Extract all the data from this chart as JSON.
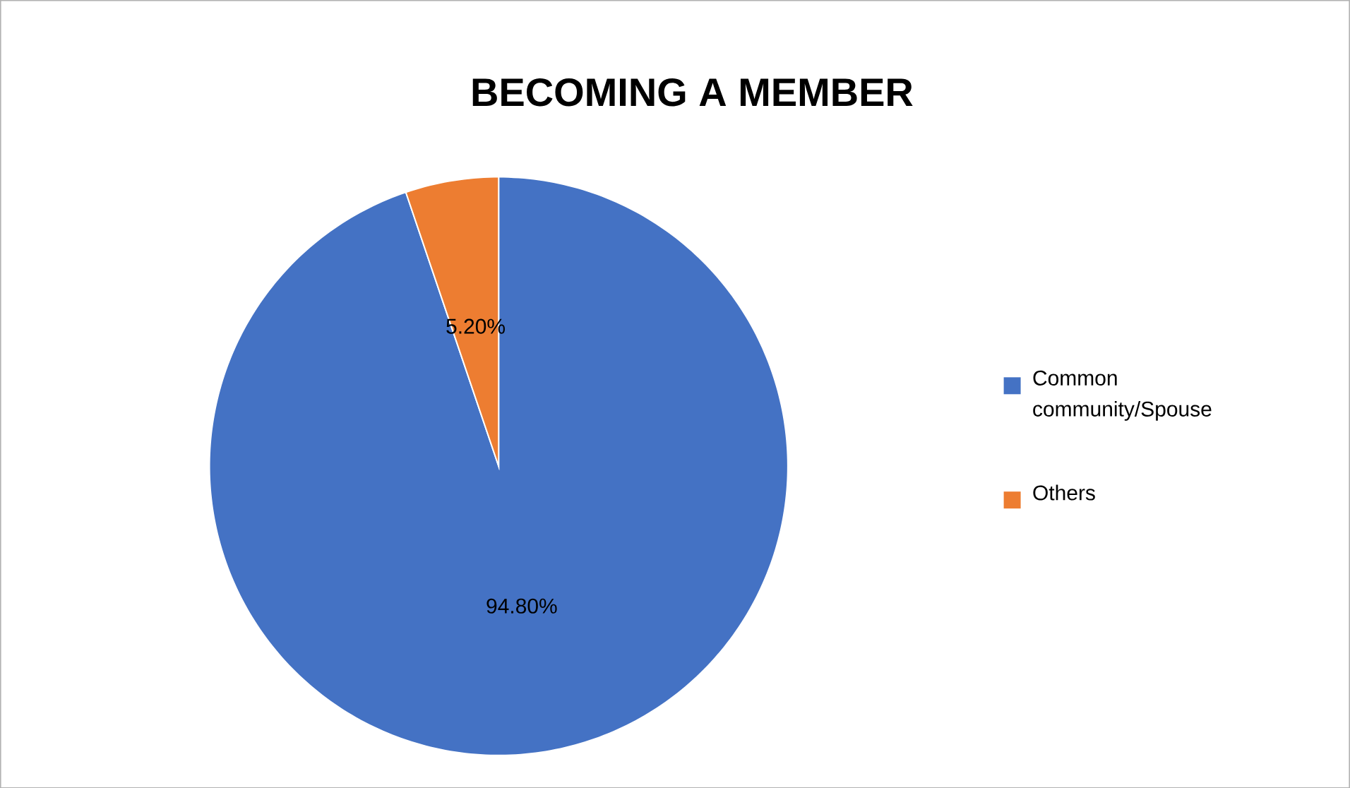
{
  "chart_data": {
    "type": "pie",
    "title": "BECOMING A MEMBER",
    "categories": [
      "Common community/Spouse",
      "Others"
    ],
    "values": [
      94.8,
      5.2
    ],
    "colors": [
      "#4472c4",
      "#ed7d31"
    ],
    "value_labels": [
      "94.80%",
      "5.20%"
    ],
    "legend": "right"
  }
}
